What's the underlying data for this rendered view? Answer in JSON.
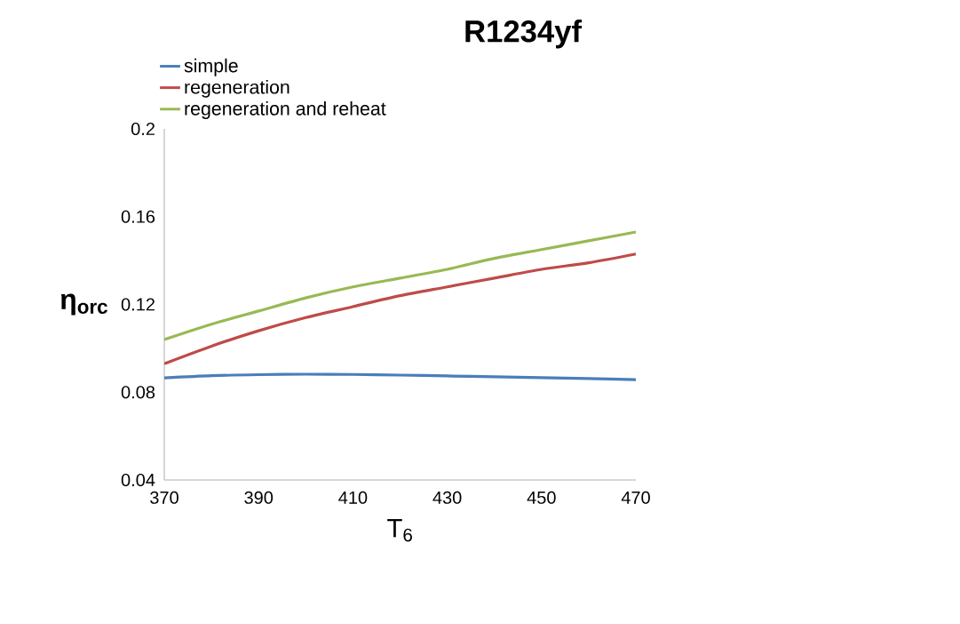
{
  "chart_data": {
    "type": "line",
    "title": "R1234yf",
    "xlabel": "T$_{6}$",
    "ylabel": "η$_{orc}$",
    "x": [
      370,
      380,
      390,
      400,
      410,
      420,
      430,
      440,
      450,
      460,
      470
    ],
    "series": [
      {
        "name": "simple",
        "color": "#4a7ebb",
        "values": [
          0.0865,
          0.0875,
          0.088,
          0.0882,
          0.0881,
          0.0878,
          0.0874,
          0.087,
          0.0866,
          0.0862,
          0.0857
        ]
      },
      {
        "name": "regeneration",
        "color": "#be4b48",
        "values": [
          0.093,
          0.101,
          0.108,
          0.114,
          0.119,
          0.124,
          0.128,
          0.132,
          0.136,
          0.139,
          0.143
        ]
      },
      {
        "name": "regeneration and reheat",
        "color": "#98b954",
        "values": [
          0.104,
          0.111,
          0.117,
          0.123,
          0.128,
          0.132,
          0.136,
          0.141,
          0.145,
          0.149,
          0.153
        ]
      }
    ],
    "xlim": [
      370,
      470
    ],
    "ylim": [
      0.04,
      0.2
    ],
    "xticks": [
      370,
      390,
      410,
      430,
      450,
      470
    ],
    "yticks": [
      0.04,
      0.08,
      0.12,
      0.16,
      0.2
    ],
    "grid": false,
    "legend": "top left",
    "marker": "none",
    "line_style": "solid"
  }
}
